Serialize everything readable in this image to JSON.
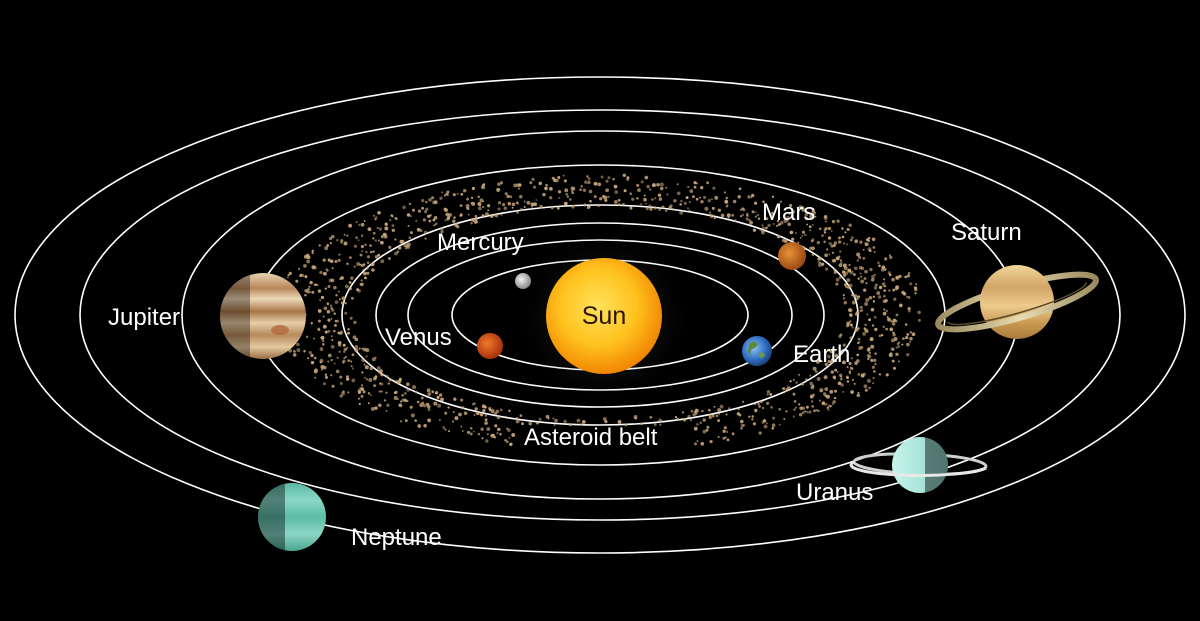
{
  "labels": {
    "sun": "Sun",
    "mercury": "Mercury",
    "venus": "Venus",
    "earth": "Earth",
    "mars": "Mars",
    "asteroid_belt": "Asteroid belt",
    "jupiter": "Jupiter",
    "saturn": "Saturn",
    "uranus": "Uranus",
    "neptune": "Neptune"
  },
  "colors": {
    "background": "#000000",
    "orbit": "#ffffff",
    "label": "#ffffff",
    "sun_core": "#ffd23a",
    "sun_edge": "#f08a00",
    "asteroid": "#c9a77a",
    "mercury": "#cfcfcf",
    "venus": "#d9501a",
    "earth": "#2f6fc4",
    "mars": "#c96a1e",
    "jupiter": "#c9a57c",
    "saturn": "#d8b070",
    "uranus": "#a8e8dc",
    "neptune": "#6ac8b4"
  }
}
